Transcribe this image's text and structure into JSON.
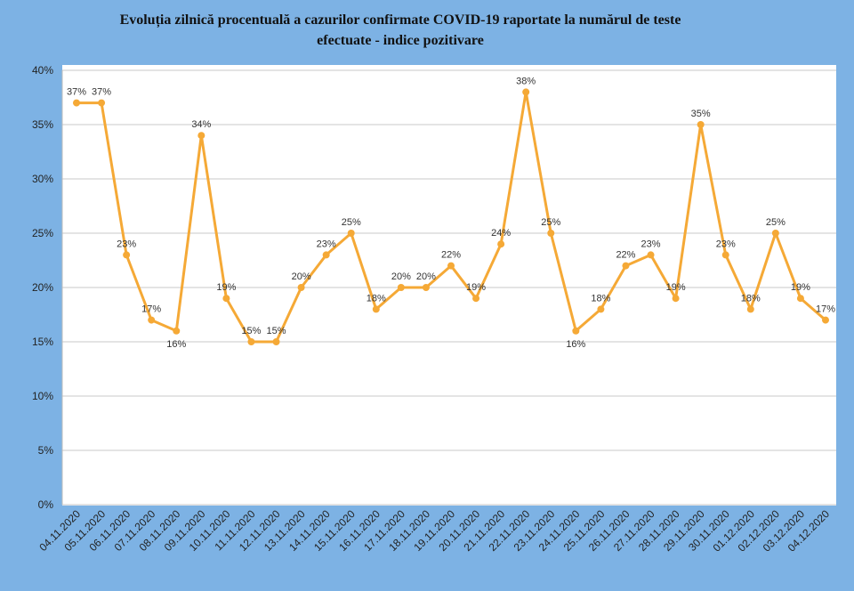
{
  "chart_data": {
    "type": "line",
    "title": "Evoluția zilnică procentuală a cazurilor confirmate COVID-19 raportate la numărul de teste efectuate - indice pozitivare",
    "xlabel": "",
    "ylabel": "",
    "categories": [
      "04.11.2020",
      "05.11.2020",
      "06.11.2020",
      "07.11.2020",
      "08.11.2020",
      "09.11.2020",
      "10.11.2020",
      "11.11.2020",
      "12.11.2020",
      "13.11.2020",
      "14.11.2020",
      "15.11.2020",
      "16.11.2020",
      "17.11.2020",
      "18.11.2020",
      "19.11.2020",
      "20.11.2020",
      "21.11.2020",
      "22.11.2020",
      "23.11.2020",
      "24.11.2020",
      "25.11.2020",
      "26.11.2020",
      "27.11.2020",
      "28.11.2020",
      "29.11.2020",
      "30.11.2020",
      "01.12.2020",
      "02.12.2020",
      "03.12.2020",
      "04.12.2020"
    ],
    "values": [
      37,
      37,
      23,
      17,
      16,
      34,
      19,
      15,
      15,
      20,
      23,
      25,
      18,
      20,
      20,
      22,
      19,
      24,
      38,
      25,
      16,
      18,
      22,
      23,
      19,
      35,
      23,
      18,
      25,
      19,
      17
    ],
    "data_labels": [
      "37%",
      "37%",
      "23%",
      "17%",
      "16%",
      "34%",
      "19%",
      "15%",
      "15%",
      "20%",
      "23%",
      "25%",
      "18%",
      "20%",
      "20%",
      "22%",
      "19%",
      "24%",
      "38%",
      "25%",
      "16%",
      "18%",
      "22%",
      "23%",
      "19%",
      "35%",
      "23%",
      "18%",
      "25%",
      "19%",
      "17%"
    ],
    "ylim": [
      0,
      40
    ],
    "y_ticks": [
      0,
      5,
      10,
      15,
      20,
      25,
      30,
      35,
      40
    ],
    "y_tick_labels": [
      "0%",
      "5%",
      "10%",
      "15%",
      "20%",
      "25%",
      "30%",
      "35%",
      "40%"
    ],
    "grid": true,
    "legend": "none",
    "line_color": "#f5a936",
    "background_color": "#7db2e4",
    "plot_background_color": "#ffffff"
  }
}
